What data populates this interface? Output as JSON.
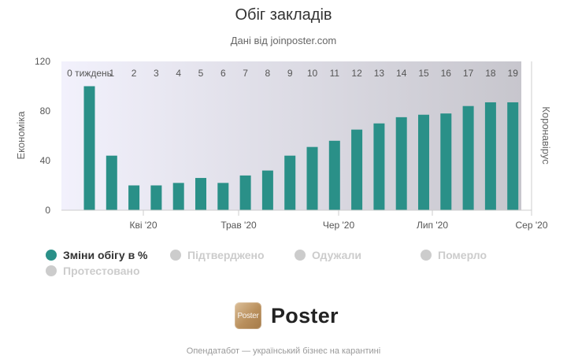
{
  "colors": {
    "accent": "#2a9088",
    "inactive": "#cccccc",
    "band_light": "#f2f1fc",
    "band_dark": "#c7c6cd"
  },
  "chart_data": {
    "type": "bar",
    "title": "Обіг закладів",
    "subtitle": "Дані від joinposter.com",
    "y_left_label": "Економіка",
    "y_right_label": "Коронавірус",
    "ylim": [
      0,
      120
    ],
    "yticks": [
      0,
      40,
      80,
      120
    ],
    "x_tick_labels": [
      "Кві '20",
      "Трав '20",
      "Чер '20",
      "Лип '20",
      "Сер '20"
    ],
    "week_labels": [
      "0 тиждень",
      "1",
      "2",
      "3",
      "4",
      "5",
      "6",
      "7",
      "8",
      "9",
      "10",
      "11",
      "12",
      "13",
      "14",
      "15",
      "16",
      "17",
      "18",
      "19"
    ],
    "series": [
      {
        "name": "Зміни обігу в %",
        "active": true,
        "values": [
          100,
          44,
          20,
          20,
          22,
          26,
          22,
          28,
          32,
          44,
          51,
          56,
          65,
          70,
          75,
          77,
          78,
          84,
          87,
          87
        ]
      },
      {
        "name": "Підтверджено",
        "active": false
      },
      {
        "name": "Одужали",
        "active": false
      },
      {
        "name": "Померло",
        "active": false
      },
      {
        "name": "Протестовано",
        "active": false
      }
    ],
    "grid": false,
    "legend_position": "bottom"
  },
  "brand": {
    "logo_text": "Poster",
    "name": "Poster"
  },
  "footer": "Опендатабот — український бізнес на карантині"
}
